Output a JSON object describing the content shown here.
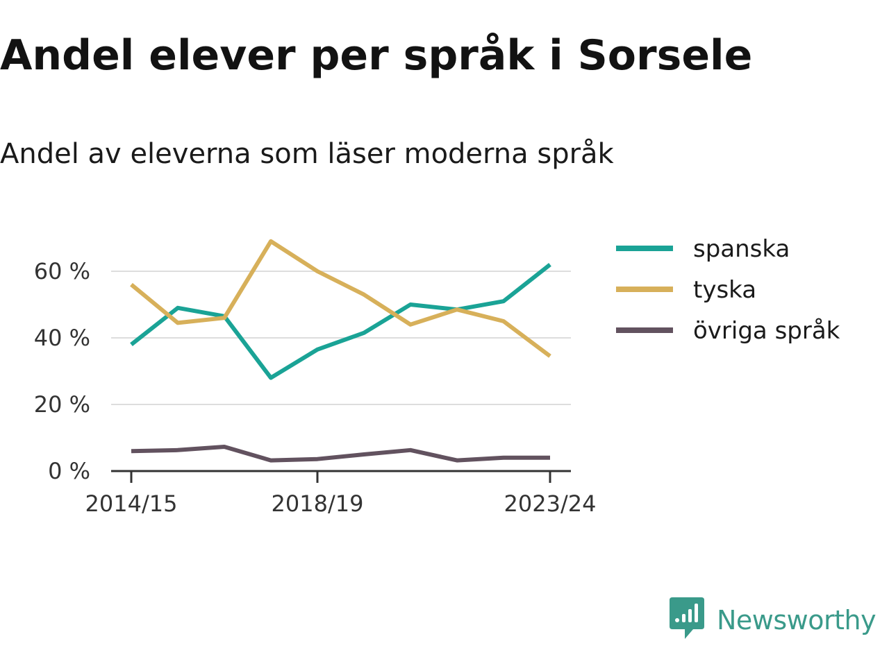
{
  "title": "Andel elever per språk i Sorsele",
  "subtitle": "Andel av eleverna som läser moderna språk",
  "brand": {
    "name": "Newsworthy",
    "icon": "newsworthy-logo-icon",
    "color": "#3a9a8a"
  },
  "chart_data": {
    "type": "line",
    "x": [
      "2014/15",
      "2015/16",
      "2016/17",
      "2017/18",
      "2018/19",
      "2019/20",
      "2020/21",
      "2021/22",
      "2022/23",
      "2023/24"
    ],
    "x_tick_labels": [
      "2014/15",
      "2018/19",
      "2023/24"
    ],
    "y_ticks": [
      0,
      20,
      40,
      60
    ],
    "y_tick_labels": [
      "0 %",
      "20 %",
      "40 %",
      "60 %"
    ],
    "ylim": [
      0,
      70
    ],
    "grid": true,
    "legend_position": "right",
    "series": [
      {
        "name": "spanska",
        "color": "#1aa396",
        "values": [
          38,
          49,
          46.5,
          28,
          36.5,
          41.5,
          50,
          48.5,
          51,
          62
        ]
      },
      {
        "name": "tyska",
        "color": "#d7b05a",
        "values": [
          56,
          44.5,
          46,
          69,
          60,
          53,
          44,
          48.5,
          45,
          34.5
        ]
      },
      {
        "name": "övriga språk",
        "color": "#62525f",
        "values": [
          6,
          6.3,
          7.3,
          3.2,
          3.6,
          5,
          6.3,
          3.2,
          4,
          4
        ]
      }
    ]
  }
}
